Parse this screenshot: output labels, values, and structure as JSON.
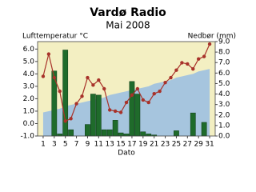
{
  "chart_data": {
    "type": "combo",
    "title": "Vardø Radio",
    "subtitle": "Mai 2008",
    "y_label": "Lufttemperatur °C",
    "y2_label": "Nedbør (mm)",
    "x_label": "Dato",
    "x": [
      1,
      2,
      3,
      4,
      5,
      6,
      7,
      8,
      9,
      10,
      11,
      12,
      13,
      14,
      15,
      16,
      17,
      18,
      19,
      20,
      21,
      22,
      23,
      24,
      25,
      26,
      27,
      28,
      29,
      30,
      31
    ],
    "xlim": [
      0,
      32
    ],
    "xticks": [
      1,
      3,
      5,
      7,
      9,
      11,
      13,
      15,
      17,
      19,
      21,
      23,
      25,
      27,
      29,
      31
    ],
    "ylim": [
      -1,
      6.6
    ],
    "yticks": [
      {
        "value": -1,
        "label": "-1.0"
      },
      {
        "value": 0,
        "label": "0.0"
      },
      {
        "value": 1,
        "label": "1.0"
      },
      {
        "value": 2,
        "label": "2.0"
      },
      {
        "value": 3,
        "label": "3.0"
      },
      {
        "value": 4,
        "label": "4.0"
      },
      {
        "value": 5,
        "label": "5.0"
      },
      {
        "value": 6,
        "label": "6.0"
      }
    ],
    "y2lim": [
      0,
      9
    ],
    "y2ticks": [
      {
        "value": 0,
        "label": "0.0"
      },
      {
        "value": 1,
        "label": "1.0"
      },
      {
        "value": 2,
        "label": "2.0"
      },
      {
        "value": 3,
        "label": "3.0"
      },
      {
        "value": 4,
        "label": "4.0"
      },
      {
        "value": 5,
        "label": "5.0"
      },
      {
        "value": 6,
        "label": "6.0"
      },
      {
        "value": 7,
        "label": "7.0"
      },
      {
        "value": 8,
        "label": "8.0"
      },
      {
        "value": 9,
        "label": "9.0"
      }
    ],
    "background_color": "#f3efc2",
    "series": [
      {
        "type": "area",
        "color": "#a6c5de",
        "values": [
          0.9,
          1.0,
          1.1,
          1.2,
          1.4,
          1.5,
          1.6,
          1.7,
          1.8,
          1.9,
          2.0,
          2.1,
          2.3,
          2.4,
          2.5,
          2.6,
          2.7,
          2.8,
          2.9,
          3.0,
          3.2,
          3.3,
          3.4,
          3.5,
          3.7,
          3.8,
          3.9,
          4.0,
          4.2,
          4.3,
          4.4
        ]
      },
      {
        "type": "bar",
        "axis": "y2",
        "color": "#1f6b2b",
        "values": [
          0,
          0,
          6.2,
          0.2,
          8.2,
          0.6,
          0,
          0,
          1.1,
          4.0,
          3.9,
          0.6,
          0.6,
          1.5,
          0.3,
          0.2,
          5.2,
          4.0,
          0.4,
          0.2,
          0.1,
          0,
          0,
          0,
          0.5,
          0,
          0,
          2.2,
          0,
          1.3,
          0
        ]
      },
      {
        "type": "line",
        "color": "#a8322a",
        "values": [
          3.8,
          5.6,
          3.7,
          2.6,
          0.2,
          0.4,
          1.6,
          2.2,
          3.7,
          3.1,
          3.5,
          2.8,
          1.1,
          1.0,
          0.9,
          1.7,
          2.3,
          2.8,
          1.9,
          1.7,
          2.4,
          2.6,
          3.3,
          3.7,
          4.3,
          4.9,
          4.8,
          4.4,
          5.2,
          5.4,
          6.4
        ]
      }
    ]
  }
}
